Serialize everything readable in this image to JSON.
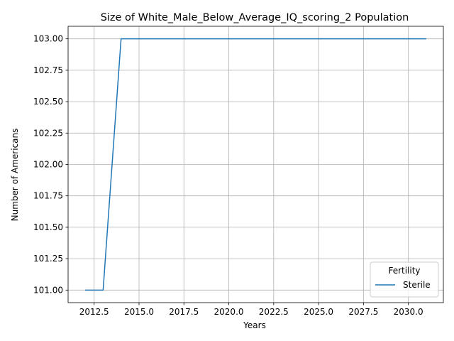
{
  "chart_data": {
    "type": "line",
    "title": "Size of White_Male_Below_Average_IQ_scoring_2 Population",
    "xlabel": "Years",
    "ylabel": "Number of Americans",
    "x": [
      2012,
      2013,
      2014,
      2015,
      2016,
      2017,
      2018,
      2019,
      2020,
      2021,
      2022,
      2023,
      2024,
      2025,
      2026,
      2027,
      2028,
      2029,
      2030,
      2031
    ],
    "series": [
      {
        "name": "Sterile",
        "color": "#1f77b4",
        "values": [
          101,
          101,
          103,
          103,
          103,
          103,
          103,
          103,
          103,
          103,
          103,
          103,
          103,
          103,
          103,
          103,
          103,
          103,
          103,
          103
        ]
      }
    ],
    "xlim": [
      2011.05,
      2031.95
    ],
    "ylim": [
      100.9,
      103.1
    ],
    "xticks": [
      2012.5,
      2015.0,
      2017.5,
      2020.0,
      2022.5,
      2025.0,
      2027.5,
      2030.0
    ],
    "xtick_labels": [
      "2012.5",
      "2015.0",
      "2017.5",
      "2020.0",
      "2022.5",
      "2025.0",
      "2027.5",
      "2030.0"
    ],
    "yticks": [
      101.0,
      101.25,
      101.5,
      101.75,
      102.0,
      102.25,
      102.5,
      102.75,
      103.0
    ],
    "ytick_labels": [
      "101.00",
      "101.25",
      "101.50",
      "101.75",
      "102.00",
      "102.25",
      "102.50",
      "102.75",
      "103.00"
    ],
    "grid": true,
    "legend": {
      "title": "Fertility",
      "position": "lower-right"
    }
  }
}
